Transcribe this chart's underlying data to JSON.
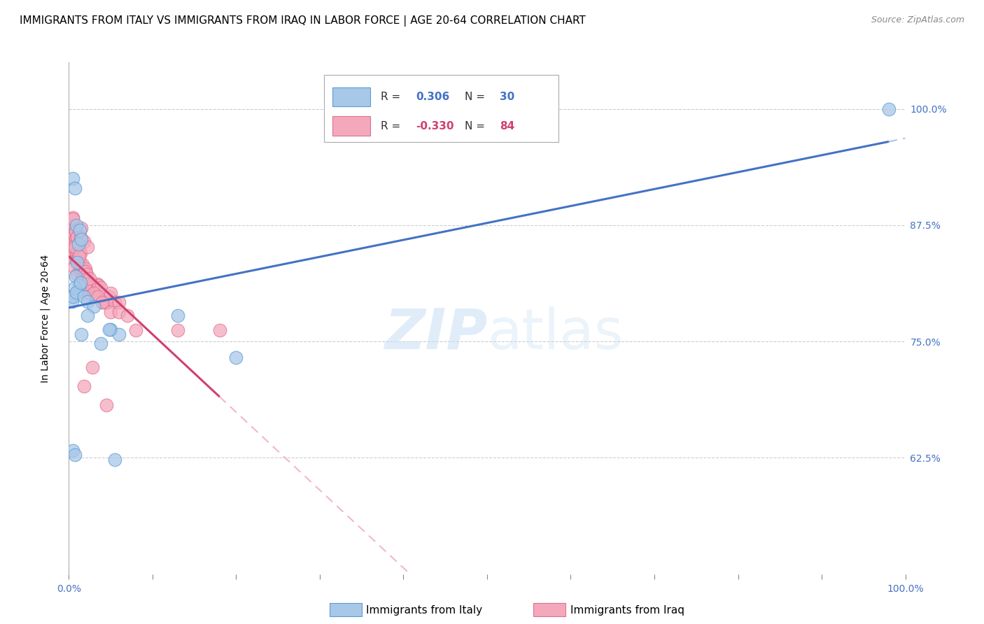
{
  "title": "IMMIGRANTS FROM ITALY VS IMMIGRANTS FROM IRAQ IN LABOR FORCE | AGE 20-64 CORRELATION CHART",
  "source": "Source: ZipAtlas.com",
  "ylabel": "In Labor Force | Age 20-64",
  "yticks": [
    0.625,
    0.75,
    0.875,
    1.0
  ],
  "ytick_labels": [
    "62.5%",
    "75.0%",
    "87.5%",
    "100.0%"
  ],
  "xlim": [
    0.0,
    1.0
  ],
  "ylim": [
    0.5,
    1.05
  ],
  "italy_color": "#a8c8e8",
  "iraq_color": "#f4a8bc",
  "italy_edge_color": "#5b9bd5",
  "iraq_edge_color": "#e07090",
  "italy_line_color": "#4472c4",
  "iraq_line_color": "#d04070",
  "italy_dash_color": "#a8c8e8",
  "iraq_dash_color": "#f0b8c8",
  "R_italy": 0.306,
  "N_italy": 30,
  "R_iraq": -0.33,
  "N_iraq": 84,
  "watermark_zip": "ZIP",
  "watermark_atlas": "atlas",
  "background_color": "#ffffff",
  "grid_color": "#cccccc",
  "title_fontsize": 11,
  "source_fontsize": 9,
  "axis_label_fontsize": 10,
  "tick_label_fontsize": 10,
  "legend_fontsize": 11,
  "italy_x": [
    0.005,
    0.007,
    0.009,
    0.011,
    0.013,
    0.015,
    0.006,
    0.008,
    0.01,
    0.012,
    0.004,
    0.005,
    0.007,
    0.009,
    0.014,
    0.018,
    0.022,
    0.03,
    0.038,
    0.05,
    0.06,
    0.13,
    0.005,
    0.007,
    0.015,
    0.022,
    0.048,
    0.2,
    0.98,
    0.055
  ],
  "italy_y": [
    0.925,
    0.915,
    0.875,
    0.855,
    0.87,
    0.86,
    0.8,
    0.82,
    0.835,
    0.81,
    0.793,
    0.798,
    0.808,
    0.803,
    0.813,
    0.798,
    0.793,
    0.788,
    0.748,
    0.763,
    0.758,
    0.778,
    0.633,
    0.628,
    0.758,
    0.778,
    0.763,
    0.733,
    1.0,
    0.623
  ],
  "iraq_x": [
    0.002,
    0.003,
    0.004,
    0.005,
    0.005,
    0.006,
    0.006,
    0.007,
    0.007,
    0.008,
    0.008,
    0.009,
    0.009,
    0.01,
    0.01,
    0.011,
    0.011,
    0.012,
    0.012,
    0.013,
    0.013,
    0.014,
    0.014,
    0.015,
    0.015,
    0.016,
    0.016,
    0.017,
    0.017,
    0.018,
    0.018,
    0.019,
    0.019,
    0.02,
    0.02,
    0.021,
    0.021,
    0.022,
    0.022,
    0.023,
    0.023,
    0.024,
    0.025,
    0.026,
    0.027,
    0.028,
    0.029,
    0.03,
    0.032,
    0.034,
    0.036,
    0.038,
    0.04,
    0.042,
    0.044,
    0.046,
    0.048,
    0.05,
    0.055,
    0.06,
    0.005,
    0.008,
    0.01,
    0.015,
    0.02,
    0.025,
    0.03,
    0.035,
    0.04,
    0.05,
    0.06,
    0.07,
    0.08,
    0.13,
    0.01,
    0.014,
    0.018,
    0.022,
    0.007,
    0.012,
    0.018,
    0.028,
    0.18,
    0.045
  ],
  "iraq_y": [
    0.87,
    0.875,
    0.84,
    0.855,
    0.883,
    0.83,
    0.85,
    0.852,
    0.87,
    0.86,
    0.855,
    0.842,
    0.838,
    0.822,
    0.845,
    0.842,
    0.838,
    0.838,
    0.835,
    0.835,
    0.848,
    0.845,
    0.828,
    0.825,
    0.822,
    0.82,
    0.833,
    0.818,
    0.815,
    0.818,
    0.825,
    0.822,
    0.82,
    0.828,
    0.825,
    0.822,
    0.818,
    0.812,
    0.81,
    0.812,
    0.802,
    0.808,
    0.812,
    0.802,
    0.812,
    0.808,
    0.812,
    0.802,
    0.798,
    0.812,
    0.81,
    0.808,
    0.792,
    0.792,
    0.792,
    0.792,
    0.798,
    0.802,
    0.792,
    0.792,
    0.882,
    0.868,
    0.862,
    0.872,
    0.812,
    0.818,
    0.802,
    0.798,
    0.792,
    0.782,
    0.782,
    0.778,
    0.762,
    0.762,
    0.862,
    0.862,
    0.858,
    0.852,
    0.852,
    0.842,
    0.702,
    0.722,
    0.762,
    0.682
  ]
}
